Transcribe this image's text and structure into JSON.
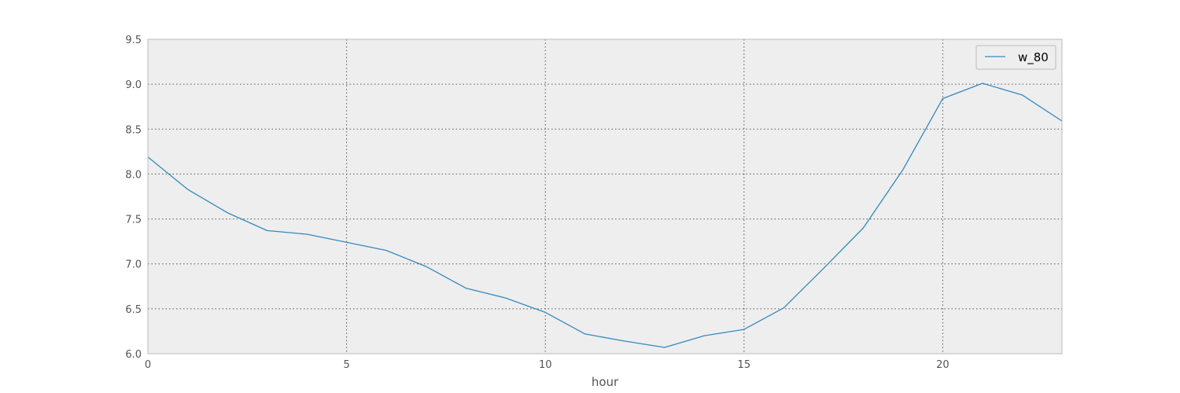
{
  "chart_data": {
    "type": "line",
    "xlabel": "hour",
    "ylabel": "",
    "xlim": [
      0,
      23
    ],
    "ylim": [
      6.0,
      9.5
    ],
    "xticks": [
      0,
      5,
      10,
      15,
      20
    ],
    "xtick_labels": [
      "0",
      "5",
      "10",
      "15",
      "20"
    ],
    "yticks": [
      6.0,
      6.5,
      7.0,
      7.5,
      8.0,
      8.5,
      9.0,
      9.5
    ],
    "ytick_labels": [
      "6.0",
      "6.5",
      "7.0",
      "7.5",
      "8.0",
      "8.5",
      "9.0",
      "9.5"
    ],
    "grid": true,
    "legend_position": "top-right",
    "background_color": "#eeeeee",
    "series": [
      {
        "name": "w_80",
        "color": "#348abd",
        "x": [
          0,
          1,
          2,
          3,
          4,
          5,
          6,
          7,
          8,
          9,
          10,
          11,
          12,
          13,
          14,
          15,
          16,
          17,
          18,
          19,
          20,
          21,
          22,
          23
        ],
        "y": [
          8.19,
          7.83,
          7.57,
          7.37,
          7.33,
          7.24,
          7.15,
          6.97,
          6.73,
          6.62,
          6.46,
          6.22,
          6.14,
          6.07,
          6.2,
          6.27,
          6.51,
          6.95,
          7.4,
          8.05,
          8.84,
          9.01,
          8.88,
          8.59
        ]
      }
    ]
  }
}
